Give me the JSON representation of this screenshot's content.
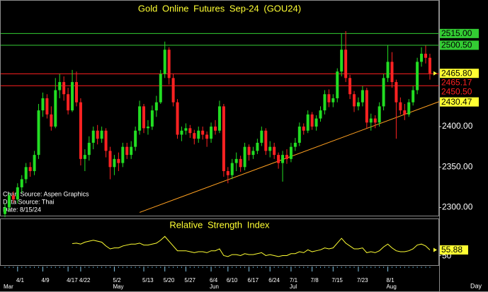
{
  "chart_data": {
    "type": "candlestick",
    "title": "Gold Online Futures Sep-24 (GOU24)",
    "categories": [
      null,
      null,
      null,
      "4/1",
      null,
      null,
      null,
      null,
      null,
      "4/9",
      null,
      null,
      null,
      null,
      null,
      "4/17",
      null,
      null,
      "4/22",
      null,
      null,
      null,
      null,
      null,
      null,
      null,
      "5/2",
      null,
      null,
      null,
      null,
      null,
      null,
      "5/13",
      null,
      null,
      null,
      null,
      "5/20",
      null,
      null,
      null,
      null,
      "5/27",
      null,
      null,
      null,
      null,
      null,
      "6/4",
      null,
      null,
      null,
      "6/10",
      null,
      null,
      null,
      null,
      "6/17",
      null,
      null,
      null,
      null,
      "6/24",
      null,
      null,
      null,
      null,
      "7/1",
      null,
      null,
      null,
      null,
      "7/8",
      null,
      null,
      null,
      null,
      "7/15",
      null,
      null,
      null,
      null,
      null,
      "7/23",
      null,
      null,
      null,
      null,
      null,
      null,
      "8/1",
      null,
      null,
      null,
      null,
      null,
      null,
      null,
      null,
      null,
      null
    ],
    "months": [
      "Mar",
      null,
      null,
      null,
      null,
      null,
      null,
      null,
      null,
      null,
      null,
      null,
      null,
      null,
      null,
      null,
      null,
      null,
      null,
      null,
      null,
      null,
      null,
      null,
      null,
      null,
      "May",
      null,
      null,
      null,
      null,
      null,
      null,
      null,
      null,
      null,
      null,
      null,
      null,
      null,
      null,
      null,
      null,
      null,
      null,
      null,
      null,
      null,
      null,
      "Jun",
      null,
      null,
      null,
      null,
      null,
      null,
      null,
      null,
      null,
      null,
      null,
      null,
      null,
      null,
      null,
      null,
      null,
      null,
      "Jul",
      null,
      null,
      null,
      null,
      null,
      null,
      null,
      null,
      null,
      null,
      null,
      null,
      null,
      null,
      null,
      null,
      null,
      null,
      null,
      null,
      null,
      null,
      "Aug",
      null,
      null,
      null,
      null,
      null,
      null,
      null,
      null,
      null,
      null
    ],
    "candles": [
      [
        2292,
        2305,
        2288,
        2300
      ],
      [
        2300,
        2318,
        2296,
        2315
      ],
      [
        2315,
        2320,
        2306,
        2310
      ],
      [
        2310,
        2330,
        2305,
        2325
      ],
      [
        2325,
        2340,
        2318,
        2335
      ],
      [
        2335,
        2355,
        2330,
        2350
      ],
      [
        2350,
        2356,
        2338,
        2345
      ],
      [
        2345,
        2370,
        2340,
        2365
      ],
      [
        2365,
        2428,
        2360,
        2420
      ],
      [
        2420,
        2442,
        2412,
        2435
      ],
      [
        2435,
        2440,
        2410,
        2415
      ],
      [
        2415,
        2425,
        2395,
        2400
      ],
      [
        2400,
        2460,
        2398,
        2445
      ],
      [
        2445,
        2465,
        2435,
        2455
      ],
      [
        2455,
        2462,
        2432,
        2440
      ],
      [
        2440,
        2448,
        2415,
        2420
      ],
      [
        2420,
        2470,
        2418,
        2455
      ],
      [
        2455,
        2468,
        2425,
        2430
      ],
      [
        2430,
        2435,
        2352,
        2360
      ],
      [
        2360,
        2372,
        2345,
        2365
      ],
      [
        2365,
        2388,
        2358,
        2380
      ],
      [
        2380,
        2400,
        2372,
        2395
      ],
      [
        2395,
        2402,
        2378,
        2385
      ],
      [
        2385,
        2400,
        2380,
        2395
      ],
      [
        2395,
        2398,
        2362,
        2370
      ],
      [
        2370,
        2375,
        2335,
        2350
      ],
      [
        2350,
        2365,
        2340,
        2360
      ],
      [
        2360,
        2368,
        2345,
        2355
      ],
      [
        2355,
        2380,
        2350,
        2375
      ],
      [
        2375,
        2380,
        2360,
        2365
      ],
      [
        2365,
        2382,
        2360,
        2375
      ],
      [
        2375,
        2400,
        2370,
        2395
      ],
      [
        2395,
        2432,
        2390,
        2425
      ],
      [
        2425,
        2428,
        2392,
        2398
      ],
      [
        2398,
        2408,
        2390,
        2400
      ],
      [
        2400,
        2426,
        2396,
        2420
      ],
      [
        2420,
        2438,
        2412,
        2430
      ],
      [
        2430,
        2470,
        2428,
        2465
      ],
      [
        2465,
        2505,
        2460,
        2495
      ],
      [
        2495,
        2498,
        2452,
        2460
      ],
      [
        2460,
        2465,
        2425,
        2430
      ],
      [
        2430,
        2434,
        2385,
        2390
      ],
      [
        2390,
        2400,
        2382,
        2395
      ],
      [
        2395,
        2404,
        2390,
        2398
      ],
      [
        2398,
        2402,
        2386,
        2392
      ],
      [
        2392,
        2396,
        2378,
        2385
      ],
      [
        2385,
        2400,
        2380,
        2395
      ],
      [
        2395,
        2400,
        2384,
        2390
      ],
      [
        2390,
        2394,
        2375,
        2385
      ],
      [
        2385,
        2405,
        2380,
        2400
      ],
      [
        2400,
        2408,
        2390,
        2395
      ],
      [
        2395,
        2432,
        2392,
        2425
      ],
      [
        2425,
        2428,
        2338,
        2345
      ],
      [
        2345,
        2350,
        2330,
        2340
      ],
      [
        2340,
        2360,
        2335,
        2355
      ],
      [
        2355,
        2368,
        2345,
        2360
      ],
      [
        2360,
        2364,
        2344,
        2350
      ],
      [
        2350,
        2380,
        2346,
        2375
      ],
      [
        2375,
        2378,
        2358,
        2365
      ],
      [
        2365,
        2375,
        2360,
        2370
      ],
      [
        2370,
        2385,
        2366,
        2380
      ],
      [
        2380,
        2400,
        2376,
        2395
      ],
      [
        2395,
        2398,
        2365,
        2370
      ],
      [
        2370,
        2382,
        2362,
        2375
      ],
      [
        2375,
        2380,
        2360,
        2365
      ],
      [
        2365,
        2368,
        2348,
        2355
      ],
      [
        2355,
        2370,
        2332,
        2365
      ],
      [
        2365,
        2372,
        2354,
        2360
      ],
      [
        2360,
        2380,
        2356,
        2375
      ],
      [
        2375,
        2386,
        2370,
        2380
      ],
      [
        2380,
        2405,
        2376,
        2400
      ],
      [
        2400,
        2404,
        2390,
        2395
      ],
      [
        2395,
        2420,
        2392,
        2415
      ],
      [
        2415,
        2418,
        2396,
        2400
      ],
      [
        2400,
        2414,
        2395,
        2410
      ],
      [
        2410,
        2425,
        2406,
        2420
      ],
      [
        2420,
        2445,
        2415,
        2440
      ],
      [
        2440,
        2446,
        2424,
        2430
      ],
      [
        2430,
        2440,
        2424,
        2435
      ],
      [
        2435,
        2472,
        2430,
        2468
      ],
      [
        2468,
        2515,
        2462,
        2495
      ],
      [
        2495,
        2518,
        2455,
        2460
      ],
      [
        2460,
        2464,
        2434,
        2440
      ],
      [
        2440,
        2444,
        2418,
        2425
      ],
      [
        2425,
        2436,
        2420,
        2430
      ],
      [
        2430,
        2450,
        2425,
        2445
      ],
      [
        2445,
        2448,
        2398,
        2405
      ],
      [
        2405,
        2416,
        2395,
        2410
      ],
      [
        2410,
        2414,
        2398,
        2405
      ],
      [
        2405,
        2430,
        2400,
        2425
      ],
      [
        2425,
        2465,
        2420,
        2460
      ],
      [
        2460,
        2500,
        2455,
        2480
      ],
      [
        2480,
        2492,
        2448,
        2455
      ],
      [
        2455,
        2458,
        2385,
        2430
      ],
      [
        2430,
        2436,
        2415,
        2420
      ],
      [
        2420,
        2428,
        2408,
        2415
      ],
      [
        2415,
        2434,
        2412,
        2430
      ],
      [
        2430,
        2450,
        2426,
        2445
      ],
      [
        2445,
        2485,
        2440,
        2480
      ],
      [
        2480,
        2498,
        2474,
        2490
      ],
      [
        2490,
        2500,
        2478,
        2485
      ],
      [
        2485,
        2490,
        2458,
        2465.8
      ]
    ],
    "up_color": "#22dd22",
    "down_color": "#ff2222",
    "ylim": [
      2290,
      2552
    ],
    "yticks": [
      {
        "value": 2300,
        "label": "2300.00"
      },
      {
        "value": 2350,
        "label": "2350.00"
      },
      {
        "value": 2400,
        "label": "2400.00"
      }
    ],
    "levels": [
      {
        "value": 2515,
        "label": "2515.00",
        "color": "#33cc33",
        "style": "box"
      },
      {
        "value": 2500.5,
        "label": "2500.50",
        "color": "#33cc33",
        "style": "box"
      },
      {
        "value": 2465.17,
        "label": "2465.17",
        "color": "#ff2020",
        "style": "text"
      },
      {
        "value": 2450.5,
        "label": "2450.50",
        "color": "#ff2020",
        "style": "text"
      }
    ],
    "last_price": {
      "value": 2465.8,
      "label": "2465.80",
      "color": "#ffff33"
    },
    "trendline": {
      "color": "#ffa020",
      "values": [
        null,
        null,
        null,
        null,
        null,
        null,
        null,
        null,
        null,
        null,
        null,
        null,
        null,
        null,
        null,
        null,
        null,
        null,
        null,
        null,
        null,
        null,
        null,
        null,
        null,
        null,
        null,
        null,
        null,
        null,
        null,
        null,
        2294,
        null,
        null,
        null,
        null,
        null,
        null,
        null,
        null,
        null,
        null,
        null,
        null,
        null,
        null,
        null,
        null,
        null,
        null,
        null,
        null,
        null,
        null,
        null,
        null,
        null,
        null,
        null,
        null,
        null,
        null,
        null,
        null,
        null,
        null,
        null,
        null,
        null,
        null,
        null,
        null,
        null,
        null,
        null,
        null,
        null,
        null,
        null,
        null,
        null,
        null,
        null,
        null,
        null,
        null,
        null,
        null,
        null,
        null,
        null,
        null,
        null,
        null,
        null,
        null,
        null,
        null,
        null,
        null,
        2426.6
      ],
      "end_label": {
        "value": 2430.47,
        "label": "2430.47"
      }
    },
    "notes": [
      "Chart Source: Aspen Graphics",
      "Data Source: Thai",
      "Date: 8/15/24"
    ],
    "x_unit": "Day",
    "rsi": {
      "title": "Relative Strength Index",
      "color": "#ffff33",
      "ylim": [
        40,
        88
      ],
      "yticks": [
        50
      ],
      "last": {
        "value": 55.88,
        "label": "55.88"
      },
      "values": [
        null,
        null,
        null,
        null,
        null,
        null,
        null,
        null,
        null,
        null,
        null,
        null,
        null,
        null,
        null,
        null,
        62.5,
        63,
        62,
        64,
        65,
        66,
        65,
        64,
        60,
        57,
        58,
        58,
        60,
        61,
        62,
        62,
        63,
        61,
        61,
        62,
        63,
        66,
        70,
        65,
        60,
        55,
        55,
        55,
        54,
        53,
        54,
        54,
        53,
        55,
        55,
        57,
        50,
        49,
        51,
        51,
        50,
        52,
        51,
        51,
        52,
        53,
        50,
        51,
        50,
        49,
        50,
        50,
        52,
        52,
        54,
        53,
        56,
        54,
        55,
        56,
        58,
        57,
        58,
        63,
        68,
        63,
        60,
        57,
        57,
        58,
        53,
        54,
        53,
        55,
        59,
        62,
        58,
        55,
        54,
        54,
        55,
        57,
        61,
        62,
        60,
        55.88
      ]
    }
  }
}
